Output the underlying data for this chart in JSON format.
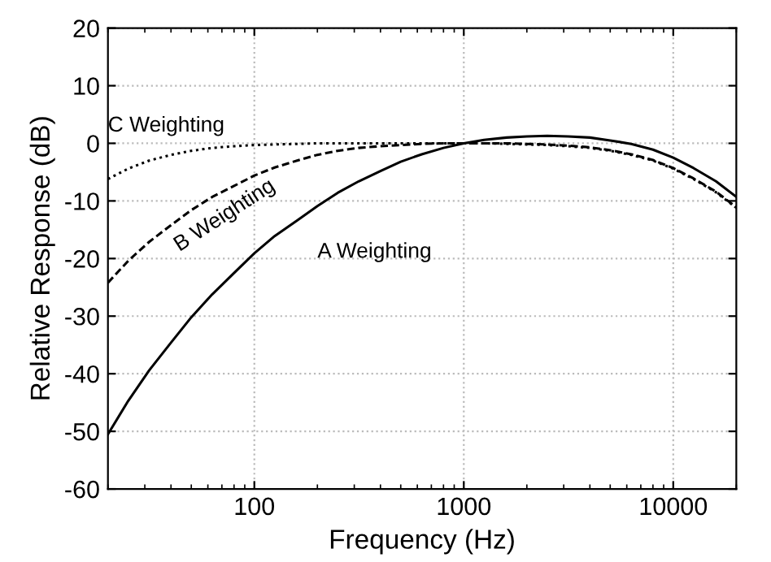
{
  "chart_data": {
    "type": "line",
    "xlabel": "Frequency (Hz)",
    "ylabel": "Relative Response (dB)",
    "x": [
      20,
      25,
      31.5,
      40,
      50,
      63,
      80,
      100,
      125,
      160,
      200,
      250,
      315,
      400,
      500,
      630,
      800,
      1000,
      1250,
      1600,
      2000,
      2500,
      3150,
      4000,
      5000,
      6300,
      8000,
      10000,
      12500,
      16000,
      20000
    ],
    "series": [
      {
        "name": "A Weighting",
        "color": "#000000",
        "line_style": "solid",
        "values": [
          -50.5,
          -44.7,
          -39.4,
          -34.6,
          -30.2,
          -26.2,
          -22.5,
          -19.1,
          -16.1,
          -13.4,
          -10.9,
          -8.6,
          -6.6,
          -4.8,
          -3.2,
          -1.9,
          -0.8,
          0,
          0.6,
          1.0,
          1.2,
          1.3,
          1.2,
          1.0,
          0.5,
          -0.1,
          -1.1,
          -2.5,
          -4.3,
          -6.6,
          -9.3
        ]
      },
      {
        "name": "B Weighting",
        "color": "#000000",
        "line_style": "dashed",
        "values": [
          -24.2,
          -20.4,
          -17.1,
          -14.2,
          -11.6,
          -9.3,
          -7.4,
          -5.6,
          -4.2,
          -3.0,
          -2.0,
          -1.3,
          -0.8,
          -0.5,
          -0.3,
          -0.1,
          0,
          0,
          0,
          0,
          -0.1,
          -0.2,
          -0.4,
          -0.7,
          -1.2,
          -1.9,
          -2.9,
          -4.3,
          -6.1,
          -8.4,
          -11.1
        ]
      },
      {
        "name": "C Weighting",
        "color": "#000000",
        "line_style": "dotted",
        "values": [
          -6.2,
          -4.4,
          -3.0,
          -2.0,
          -1.3,
          -0.8,
          -0.5,
          -0.3,
          -0.2,
          -0.1,
          0,
          0,
          0,
          0,
          0,
          0,
          0,
          0,
          0,
          -0.1,
          -0.2,
          -0.3,
          -0.5,
          -0.8,
          -1.3,
          -2.0,
          -3.0,
          -4.4,
          -6.2,
          -8.5,
          -11.2
        ]
      }
    ],
    "log": "x",
    "xlim": [
      20,
      20000
    ],
    "xticks": [
      100,
      1000,
      10000
    ],
    "ylim": [
      -60,
      20
    ],
    "yticks": [
      -60,
      -50,
      -40,
      -30,
      -20,
      -10,
      0,
      10,
      20
    ],
    "grid": true,
    "legend": false,
    "marker": "none"
  }
}
